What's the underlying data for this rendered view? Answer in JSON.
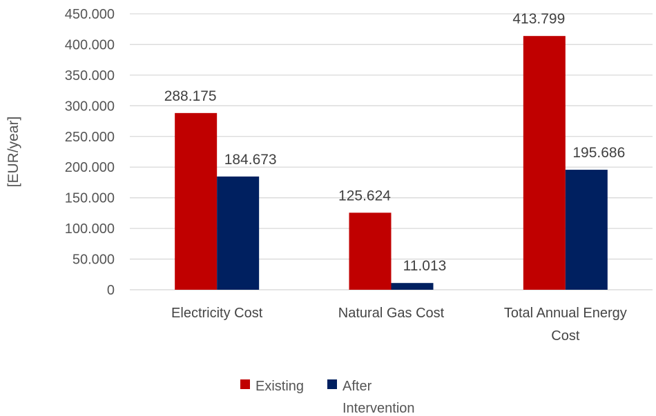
{
  "chart_data": {
    "type": "bar",
    "title": "",
    "xlabel": "",
    "ylabel": "[EUR/year]",
    "categories": [
      [
        "Electricity Cost"
      ],
      [
        "Natural Gas Cost"
      ],
      [
        "Total Annual Energy",
        "Cost"
      ]
    ],
    "series": [
      {
        "name": "Existing",
        "color": "#c00000",
        "values": [
          288175,
          125624,
          413799
        ],
        "labels": [
          "288.175",
          "125.624",
          "413.799"
        ]
      },
      {
        "name": "After Intervention",
        "legend_lines": [
          "After",
          "Intervention"
        ],
        "color": "#002060",
        "values": [
          184673,
          11013,
          195686
        ],
        "labels": [
          "184.673",
          "11.013",
          "195.686"
        ]
      }
    ],
    "ylim": [
      0,
      450000
    ],
    "yticks": [
      0,
      50000,
      100000,
      150000,
      200000,
      250000,
      300000,
      350000,
      400000,
      450000
    ],
    "ytick_labels": [
      "0",
      "50.000",
      "100.000",
      "150.000",
      "200.000",
      "250.000",
      "300.000",
      "350.000",
      "400.000",
      "450.000"
    ],
    "grid": true,
    "grid_color": "#d9d9d9",
    "legend_position": "bottom"
  }
}
